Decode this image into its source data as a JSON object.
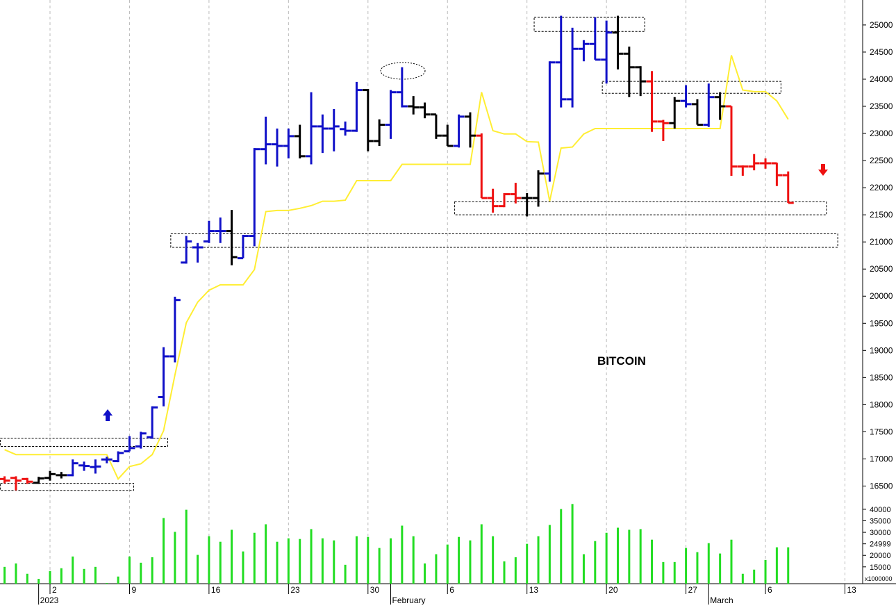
{
  "chart_data": {
    "type": "ohlc",
    "annotation": "BITCOIN",
    "x": [
      "2022-12-29",
      "2022-12-30",
      "2022-12-31",
      "2023-01-01",
      "2023-01-02",
      "2023-01-03",
      "2023-01-04",
      "2023-01-05",
      "2023-01-06",
      "2023-01-07",
      "2023-01-08",
      "2023-01-09",
      "2023-01-10",
      "2023-01-11",
      "2023-01-12",
      "2023-01-13",
      "2023-01-14",
      "2023-01-15",
      "2023-01-16",
      "2023-01-17",
      "2023-01-18",
      "2023-01-19",
      "2023-01-20",
      "2023-01-21",
      "2023-01-22",
      "2023-01-23",
      "2023-01-24",
      "2023-01-25",
      "2023-01-26",
      "2023-01-27",
      "2023-01-28",
      "2023-01-29",
      "2023-01-30",
      "2023-01-31",
      "2023-02-01",
      "2023-02-02",
      "2023-02-03",
      "2023-02-04",
      "2023-02-05",
      "2023-02-06",
      "2023-02-07",
      "2023-02-08",
      "2023-02-09",
      "2023-02-10",
      "2023-02-11",
      "2023-02-12",
      "2023-02-13",
      "2023-02-14",
      "2023-02-15",
      "2023-02-16",
      "2023-02-17",
      "2023-02-18",
      "2023-02-19",
      "2023-02-20",
      "2023-02-21",
      "2023-02-22",
      "2023-02-23",
      "2023-02-24",
      "2023-02-25",
      "2023-02-26",
      "2023-02-27",
      "2023-02-28",
      "2023-03-01",
      "2023-03-02",
      "2023-03-03",
      "2023-03-04",
      "2023-03-05",
      "2023-03-06",
      "2023-03-07",
      "2023-03-08"
    ],
    "open": [
      16630,
      16650,
      16630,
      16560,
      16650,
      16700,
      16700,
      16880,
      16850,
      16990,
      16960,
      17140,
      17230,
      17400,
      18140,
      18890,
      20620,
      20900,
      21010,
      21200,
      21200,
      20700,
      21110,
      22710,
      22800,
      22770,
      22950,
      22580,
      23130,
      23090,
      23080,
      23050,
      23800,
      22860,
      23160,
      23760,
      23500,
      23480,
      23350,
      22960,
      22770,
      23310,
      22960,
      21810,
      21660,
      21880,
      21810,
      21810,
      22260,
      24310,
      23630,
      24560,
      24650,
      24360,
      24860,
      24470,
      24220,
      23960,
      23220,
      23190,
      23600,
      23540,
      23160,
      23670,
      23500,
      22390,
      22390,
      22450,
      22450,
      22230
    ],
    "high": [
      16680,
      16680,
      16650,
      16670,
      16780,
      16760,
      16990,
      16950,
      16990,
      17040,
      17140,
      17420,
      17500,
      17970,
      19060,
      19990,
      21110,
      20980,
      21390,
      21450,
      21590,
      21130,
      22730,
      23310,
      23090,
      23090,
      23160,
      23760,
      23350,
      23450,
      23220,
      23950,
      23820,
      23260,
      23800,
      24220,
      23690,
      23570,
      23350,
      23160,
      23350,
      23390,
      23000,
      21980,
      21900,
      22090,
      21900,
      22320,
      24330,
      25170,
      24950,
      24720,
      25140,
      25080,
      25170,
      24600,
      24240,
      24150,
      23250,
      23670,
      23890,
      23630,
      23920,
      23760,
      23500,
      22410,
      22620,
      22540,
      22460,
      22300
    ],
    "low": [
      16550,
      16420,
      16540,
      16540,
      16600,
      16640,
      16680,
      16780,
      16730,
      16920,
      16940,
      17140,
      17190,
      17370,
      17970,
      18780,
      20600,
      20620,
      20980,
      20980,
      20570,
      20700,
      20920,
      22430,
      22390,
      22540,
      22540,
      22430,
      22640,
      22670,
      22960,
      23030,
      22670,
      22770,
      22900,
      23480,
      23350,
      23280,
      22900,
      22770,
      22740,
      22740,
      21810,
      21540,
      21640,
      21710,
      21470,
      21650,
      22110,
      23480,
      23480,
      24330,
      24360,
      23920,
      24180,
      23670,
      23690,
      23030,
      22860,
      23090,
      23480,
      23160,
      23120,
      23250,
      22220,
      22220,
      22320,
      22350,
      22030,
      21720
    ],
    "close": [
      16600,
      16600,
      16580,
      16640,
      16720,
      16700,
      16920,
      16870,
      16860,
      16990,
      17110,
      17200,
      17470,
      17950,
      18890,
      19930,
      21010,
      20900,
      21200,
      21200,
      20720,
      21110,
      22710,
      22800,
      22770,
      22950,
      22580,
      23130,
      23090,
      23130,
      23050,
      23800,
      22860,
      23160,
      23760,
      23500,
      23480,
      23350,
      22960,
      22770,
      23310,
      22960,
      21810,
      21660,
      21880,
      21810,
      21810,
      22260,
      24310,
      23630,
      24560,
      24650,
      24360,
      24860,
      24470,
      24220,
      23960,
      23220,
      23190,
      23600,
      23540,
      23160,
      23670,
      23500,
      22390,
      22390,
      22450,
      22450,
      22230,
      21720
    ],
    "bar_colors": [
      "#ee1111",
      "#ee1111",
      "#ee1111",
      "#000000",
      "#000000",
      "#000000",
      "#1010c8",
      "#1010c8",
      "#1010c8",
      "#1010c8",
      "#1010c8",
      "#1010c8",
      "#1010c8",
      "#1010c8",
      "#1010c8",
      "#1010c8",
      "#1010c8",
      "#1010c8",
      "#1010c8",
      "#1010c8",
      "#000000",
      "#1010c8",
      "#1010c8",
      "#1010c8",
      "#1010c8",
      "#1010c8",
      "#000000",
      "#1010c8",
      "#1010c8",
      "#1010c8",
      "#1010c8",
      "#1010c8",
      "#000000",
      "#000000",
      "#1010c8",
      "#1010c8",
      "#000000",
      "#000000",
      "#000000",
      "#000000",
      "#1010c8",
      "#000000",
      "#ee1111",
      "#ee1111",
      "#ee1111",
      "#ee1111",
      "#000000",
      "#000000",
      "#1010c8",
      "#1010c8",
      "#1010c8",
      "#1010c8",
      "#1010c8",
      "#1010c8",
      "#000000",
      "#000000",
      "#000000",
      "#ee1111",
      "#ee1111",
      "#000000",
      "#1010c8",
      "#000000",
      "#1010c8",
      "#000000",
      "#ee1111",
      "#ee1111",
      "#ee1111",
      "#ee1111",
      "#ee1111",
      "#ee1111"
    ],
    "line": {
      "color": "#ffee33",
      "values": [
        17170,
        17080,
        17080,
        17080,
        17080,
        17080,
        17080,
        17080,
        17080,
        17080,
        16630,
        16860,
        16910,
        17080,
        17520,
        18550,
        19510,
        19890,
        20110,
        20210,
        20210,
        20210,
        20490,
        21560,
        21580,
        21580,
        21620,
        21670,
        21750,
        21750,
        21770,
        22130,
        22130,
        22130,
        22130,
        22430,
        22430,
        22430,
        22430,
        22430,
        22430,
        22430,
        23760,
        23050,
        22990,
        22990,
        22850,
        22840,
        21750,
        22730,
        22750,
        22990,
        23090,
        23090,
        23090,
        23090,
        23090,
        23090,
        23090,
        23090,
        23090,
        23090,
        23090,
        23090,
        24440,
        23800,
        23770,
        23770,
        23600,
        23260
      ]
    },
    "zones": [
      {
        "from": "2022-12-29",
        "to": "2023-01-12",
        "low": 17230,
        "high": 17380
      },
      {
        "from": "2022-12-29",
        "to": "2023-01-09",
        "low": 16420,
        "high": 16550
      },
      {
        "from": "2023-01-13",
        "to": "2023-03-12",
        "low": 20900,
        "high": 21150
      },
      {
        "from": "2023-02-07",
        "to": "2023-03-11",
        "low": 21500,
        "high": 21740
      },
      {
        "from": "2023-02-14",
        "to": "2023-02-23",
        "low": 24880,
        "high": 25140
      },
      {
        "from": "2023-02-20",
        "to": "2023-03-07",
        "low": 23740,
        "high": 23960
      }
    ],
    "ylim": [
      16250,
      25460
    ],
    "yticks": [
      16500,
      17000,
      17500,
      18000,
      18500,
      19000,
      19500,
      20000,
      20500,
      21000,
      21500,
      22000,
      22500,
      23000,
      23500,
      24000,
      24500,
      25000
    ],
    "volume": [
      15000,
      16500,
      12000,
      9800,
      13200,
      14400,
      19500,
      14100,
      15000,
      8000,
      10800,
      19500,
      16800,
      19200,
      36200,
      30200,
      39800,
      20200,
      28300,
      25900,
      31100,
      21700,
      29800,
      33500,
      25900,
      27400,
      27100,
      31400,
      27400,
      26500,
      15900,
      28300,
      28000,
      23200,
      27400,
      32900,
      28300,
      16500,
      20500,
      24700,
      28000,
      26500,
      33500,
      28300,
      17400,
      19200,
      25000,
      28300,
      33200,
      40100,
      42300,
      20500,
      26200,
      29800,
      32000,
      31100,
      31400,
      26800,
      17100,
      17100,
      23200,
      21400,
      25300,
      20800,
      26800,
      12000,
      13800,
      18000,
      23500,
      23500
    ],
    "volume_color": "#22dd22",
    "volume_ylim": [
      7700,
      43000
    ],
    "volume_yticks": [
      15000,
      20000,
      24999,
      30000,
      35000,
      40000
    ],
    "volume_axis_label": "x1000000",
    "xticks": [
      {
        "value": "2023-01-02",
        "label": "2"
      },
      {
        "value": "2023-01-09",
        "label": "9"
      },
      {
        "value": "2023-01-16",
        "label": "16"
      },
      {
        "value": "2023-01-23",
        "label": "23"
      },
      {
        "value": "2023-01-30",
        "label": "30"
      },
      {
        "value": "2023-02-06",
        "label": "6"
      },
      {
        "value": "2023-02-13",
        "label": "13"
      },
      {
        "value": "2023-02-20",
        "label": "20"
      },
      {
        "value": "2023-02-27",
        "label": "27"
      },
      {
        "value": "2023-03-06",
        "label": "6"
      },
      {
        "value": "2023-03-13",
        "label": "13"
      }
    ],
    "month_labels": [
      {
        "value": "2023-01-01",
        "label": "2023"
      },
      {
        "value": "2023-02-01",
        "label": "February"
      },
      {
        "value": "2023-03-01",
        "label": "March"
      }
    ],
    "grid": true
  }
}
